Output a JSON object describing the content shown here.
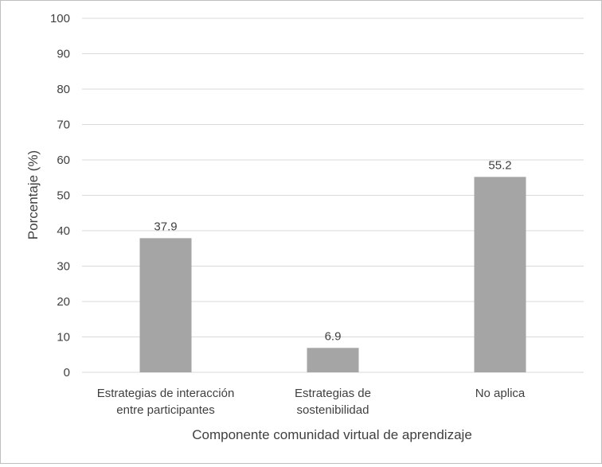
{
  "chart_data": {
    "type": "bar",
    "categories": [
      [
        "Estrategias de interacción",
        "entre participantes"
      ],
      [
        "Estrategias de",
        "sostenibilidad"
      ],
      [
        "No aplica"
      ]
    ],
    "values": [
      37.9,
      6.9,
      55.2
    ],
    "value_labels": [
      "37.9",
      "6.9",
      "55.2"
    ],
    "xlabel": "Componente comunidad virtual de aprendizaje",
    "ylabel": "Porcentaje (%)",
    "ylim": [
      0,
      100
    ],
    "yticks": [
      0,
      10,
      20,
      30,
      40,
      50,
      60,
      70,
      80,
      90,
      100
    ],
    "grid": true,
    "bar_color": "#a5a5a5",
    "grid_color": "#d9d9d9",
    "text_color": "#404040"
  }
}
